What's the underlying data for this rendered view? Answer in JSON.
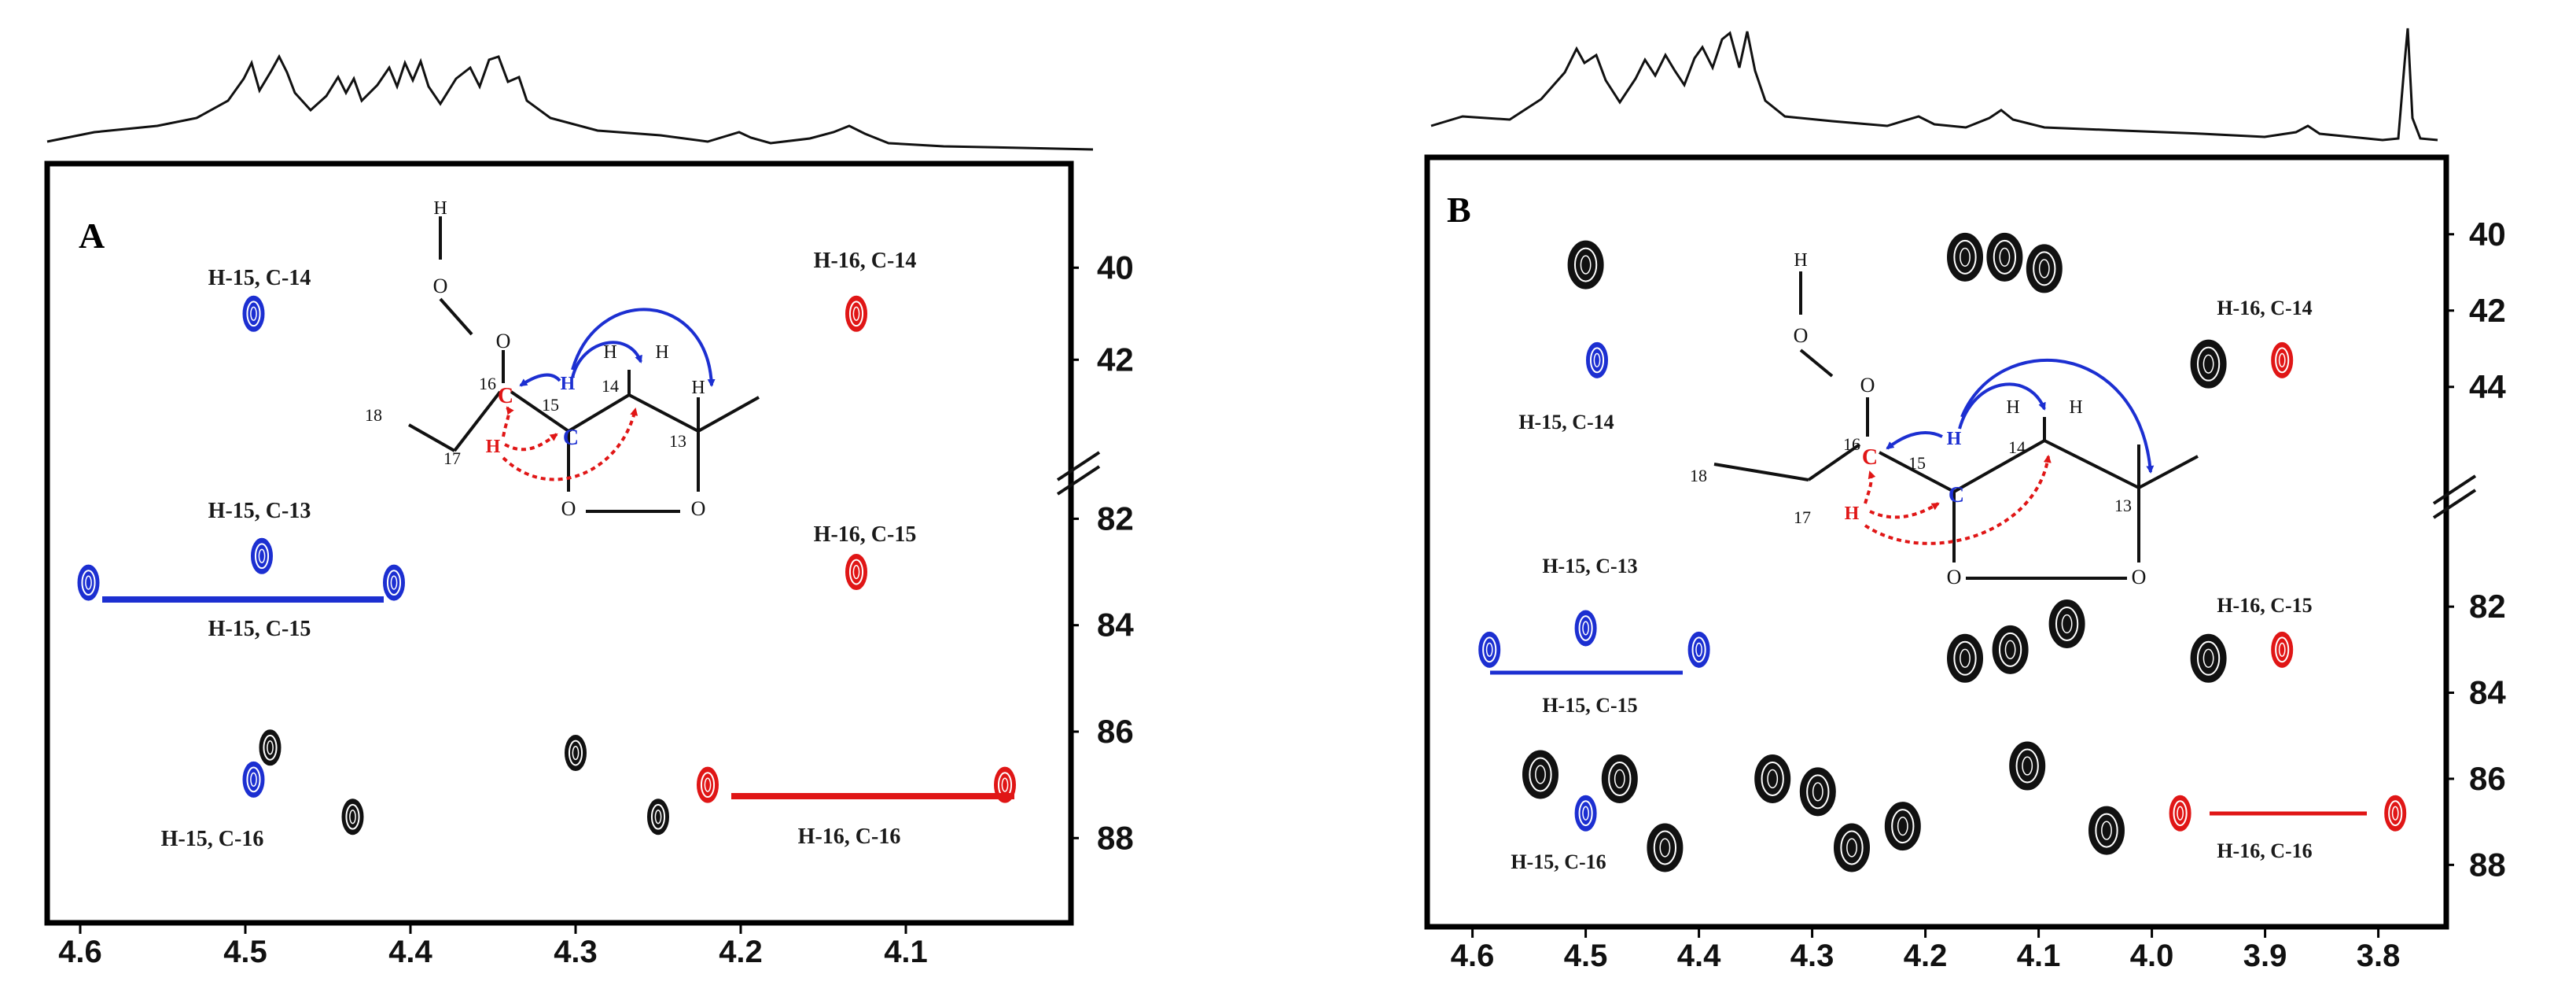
{
  "colors": {
    "blue": "#1c2fd1",
    "red": "#e01616",
    "black": "#111111",
    "frame": "#000000"
  },
  "chart_data": [
    {
      "type": "heatmap",
      "panel": "A",
      "x_ticks": [
        "4.6",
        "4.5",
        "4.4",
        "4.3",
        "4.2",
        "4.1"
      ],
      "y_ticks_upper": [
        "40",
        "42"
      ],
      "y_ticks_lower": [
        "82",
        "84",
        "86",
        "88"
      ],
      "xlim": [
        4.62,
        4.0
      ],
      "ylim_upper": [
        38.2,
        43.5
      ],
      "ylim_lower": [
        80.9,
        89.4
      ],
      "labels": [
        "H-15, C-14",
        "H-16, C-14",
        "H-15, C-13",
        "H-15, C-15",
        "H-16, C-15",
        "H-15, C-16",
        "H-16, C-16"
      ],
      "cross_peaks": [
        {
          "x": 4.495,
          "y": 41.0,
          "color": "blue"
        },
        {
          "x": 4.49,
          "y": 82.7,
          "color": "blue"
        },
        {
          "x": 4.595,
          "y": 83.2,
          "color": "blue"
        },
        {
          "x": 4.41,
          "y": 83.2,
          "color": "blue"
        },
        {
          "x": 4.495,
          "y": 86.9,
          "color": "blue"
        },
        {
          "x": 4.485,
          "y": 86.3,
          "color": "black"
        },
        {
          "x": 4.435,
          "y": 87.6,
          "color": "black"
        },
        {
          "x": 4.3,
          "y": 86.4,
          "color": "black"
        },
        {
          "x": 4.25,
          "y": 87.6,
          "color": "black"
        },
        {
          "x": 4.13,
          "y": 41.0,
          "color": "red"
        },
        {
          "x": 4.13,
          "y": 83.0,
          "color": "red"
        },
        {
          "x": 4.22,
          "y": 87.0,
          "color": "red"
        },
        {
          "x": 4.04,
          "y": 87.0,
          "color": "red"
        }
      ]
    },
    {
      "type": "heatmap",
      "panel": "B",
      "x_ticks": [
        "4.6",
        "4.5",
        "4.4",
        "4.3",
        "4.2",
        "4.1",
        "4.0",
        "3.9",
        "3.8"
      ],
      "y_ticks_upper": [
        "40",
        "42",
        "44"
      ],
      "y_ticks_lower": [
        "82",
        "84",
        "86",
        "88"
      ],
      "xlim": [
        4.64,
        3.74
      ],
      "ylim_upper": [
        38.5,
        45.2
      ],
      "ylim_lower": [
        80.7,
        89.2
      ],
      "labels": [
        "H-15, C-14",
        "H-16, C-14",
        "H-15, C-13",
        "H-15, C-15",
        "H-16, C-15",
        "H-15, C-16",
        "H-16, C-16"
      ],
      "cross_peaks": [
        {
          "x": 4.5,
          "y": 40.8,
          "color": "black"
        },
        {
          "x": 4.49,
          "y": 43.3,
          "color": "blue"
        },
        {
          "x": 4.165,
          "y": 40.6,
          "color": "black"
        },
        {
          "x": 4.13,
          "y": 40.6,
          "color": "black"
        },
        {
          "x": 4.095,
          "y": 40.9,
          "color": "black"
        },
        {
          "x": 3.95,
          "y": 43.4,
          "color": "black"
        },
        {
          "x": 3.885,
          "y": 43.3,
          "color": "red"
        },
        {
          "x": 4.5,
          "y": 82.5,
          "color": "blue"
        },
        {
          "x": 4.585,
          "y": 83.0,
          "color": "blue"
        },
        {
          "x": 4.4,
          "y": 83.0,
          "color": "blue"
        },
        {
          "x": 4.165,
          "y": 83.2,
          "color": "black"
        },
        {
          "x": 4.125,
          "y": 83.0,
          "color": "black"
        },
        {
          "x": 4.075,
          "y": 82.4,
          "color": "black"
        },
        {
          "x": 3.95,
          "y": 83.2,
          "color": "black"
        },
        {
          "x": 3.885,
          "y": 83.0,
          "color": "red"
        },
        {
          "x": 4.5,
          "y": 86.8,
          "color": "blue"
        },
        {
          "x": 4.54,
          "y": 85.9,
          "color": "black"
        },
        {
          "x": 4.47,
          "y": 86.0,
          "color": "black"
        },
        {
          "x": 4.43,
          "y": 87.6,
          "color": "black"
        },
        {
          "x": 4.335,
          "y": 86.0,
          "color": "black"
        },
        {
          "x": 4.295,
          "y": 86.3,
          "color": "black"
        },
        {
          "x": 4.265,
          "y": 87.6,
          "color": "black"
        },
        {
          "x": 4.22,
          "y": 87.1,
          "color": "black"
        },
        {
          "x": 4.11,
          "y": 85.7,
          "color": "black"
        },
        {
          "x": 4.04,
          "y": 87.2,
          "color": "black"
        },
        {
          "x": 3.975,
          "y": 86.8,
          "color": "red"
        },
        {
          "x": 3.785,
          "y": 86.8,
          "color": "red"
        }
      ]
    }
  ]
}
